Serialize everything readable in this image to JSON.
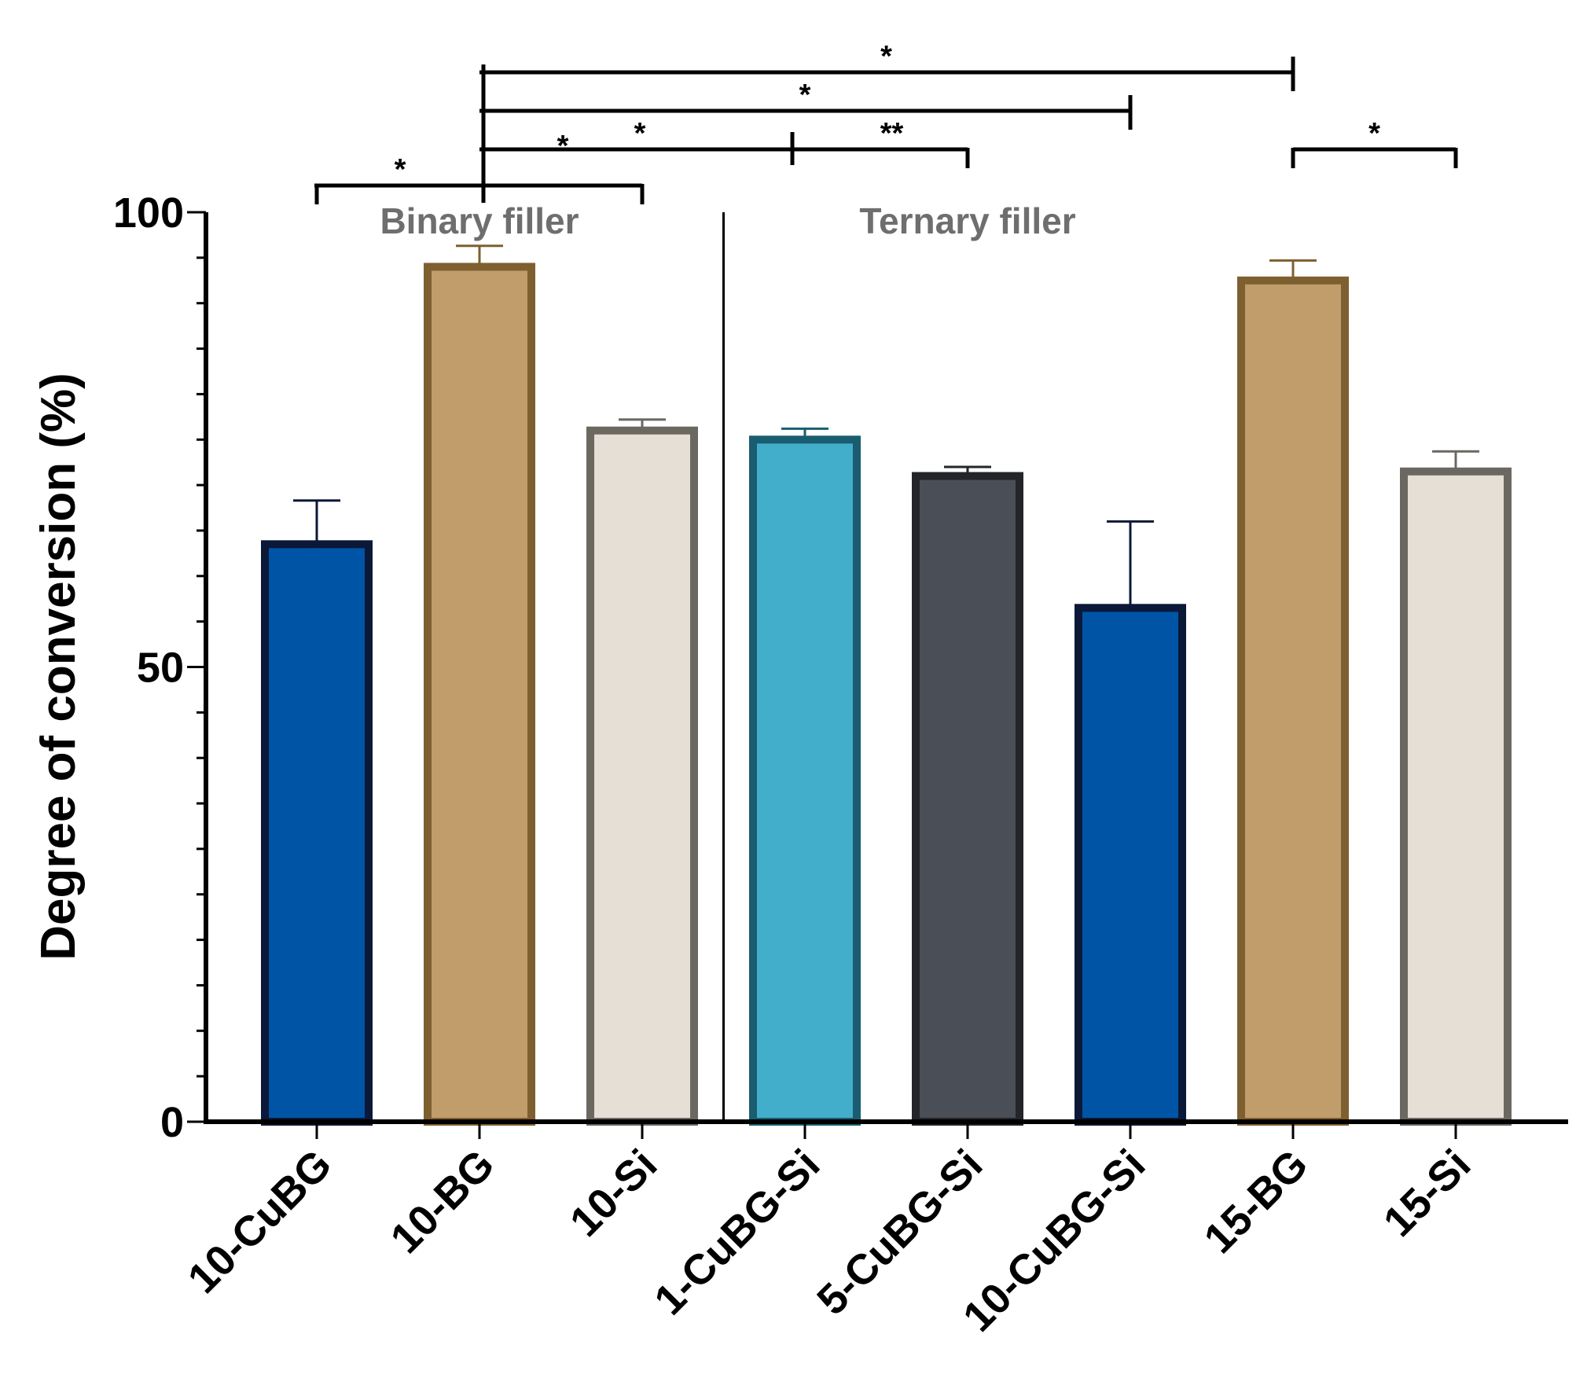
{
  "chart_data": {
    "type": "bar",
    "title": "",
    "xlabel": "",
    "ylabel": "Degree of conversion (%)",
    "ylim": [
      0,
      100
    ],
    "yticks": [
      0,
      50,
      100
    ],
    "y_minor_step": 5,
    "categories": [
      "10-CuBG",
      "10-BG",
      "10-Si",
      "1-CuBG-Si",
      "5-CuBG-Si",
      "10-CuBG-Si",
      "15-BG",
      "15-Si"
    ],
    "values": [
      63.5,
      94,
      76,
      75,
      71,
      56.5,
      92.5,
      71.5
    ],
    "errors": [
      4.8,
      2.3,
      1.2,
      1.2,
      1.0,
      9.5,
      2.2,
      2.2
    ],
    "fill_colors": [
      "#0054a6",
      "#c19d6c",
      "#e6dfd5",
      "#42aecb",
      "#4a4e57",
      "#0054a6",
      "#c19d6c",
      "#e6dfd5"
    ],
    "stroke_colors": [
      "#0b1838",
      "#7e5f30",
      "#6b6862",
      "#1a5d70",
      "#232529",
      "#0b1838",
      "#7e5f30",
      "#6b6862"
    ],
    "group_labels": [
      {
        "text": "Binary filler",
        "from": 0,
        "to": 2
      },
      {
        "text": "Ternary filler",
        "from": 3,
        "to": 5
      }
    ],
    "group_divider_after": 2,
    "significance": [
      {
        "from": 0,
        "to": 2,
        "anchor": 1,
        "label": "*",
        "split_label": "*",
        "level": 0
      },
      {
        "from": 1,
        "to": 4,
        "mid": 3,
        "label": "*",
        "label2": "**",
        "level": 1
      },
      {
        "from": 1,
        "to": 5,
        "label": "*",
        "level": 2
      },
      {
        "from": 1,
        "to": 6,
        "label": "*",
        "level": 3
      },
      {
        "from": 6,
        "to": 7,
        "label": "*",
        "level": 1
      }
    ]
  }
}
